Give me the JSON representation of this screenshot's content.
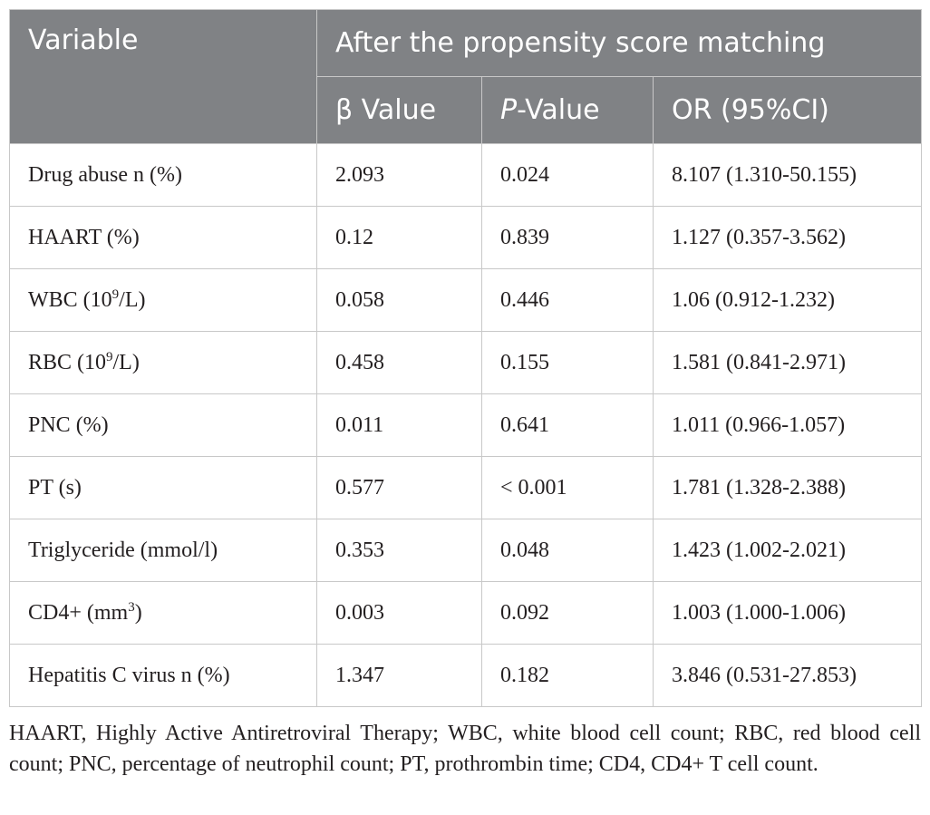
{
  "table": {
    "header": {
      "variable": "Variable",
      "group": "After the propensity score matching",
      "beta_label": "β Value",
      "p_italic": "P",
      "p_rest": "-Value",
      "or_label": "OR (95%CI)"
    },
    "rows": [
      {
        "var": "Drug abuse n (%)",
        "beta": "2.093",
        "p": "0.024",
        "or": "8.107 (1.310-50.155)"
      },
      {
        "var": "HAART (%)",
        "beta": "0.12",
        "p": "0.839",
        "or": "1.127 (0.357-3.562)"
      },
      {
        "var_pre": "WBC (10",
        "var_sup": "9",
        "var_post": "/L)",
        "beta": "0.058",
        "p": "0.446",
        "or": "1.06 (0.912-1.232)"
      },
      {
        "var_pre": "RBC (10",
        "var_sup": "9",
        "var_post": "/L)",
        "beta": "0.458",
        "p": "0.155",
        "or": "1.581 (0.841-2.971)"
      },
      {
        "var": "PNC (%)",
        "beta": "0.011",
        "p": "0.641",
        "or": "1.011 (0.966-1.057)"
      },
      {
        "var": "PT (s)",
        "beta": "0.577",
        "p": "< 0.001",
        "or": "1.781 (1.328-2.388)"
      },
      {
        "var": "Triglyceride (mmol/l)",
        "beta": "0.353",
        "p": "0.048",
        "or": "1.423 (1.002-2.021)"
      },
      {
        "var_pre": "CD4+ (mm",
        "var_sup": "3",
        "var_post": ")",
        "beta": "0.003",
        "p": "0.092",
        "or": "1.003 (1.000-1.006)"
      },
      {
        "var": "Hepatitis C virus n (%)",
        "beta": "1.347",
        "p": "0.182",
        "or": "3.846 (0.531-27.853)"
      }
    ]
  },
  "footnote": "HAART, Highly Active Antiretroviral Therapy; WBC, white blood cell count; RBC, red blood cell count; PNC, percentage of neutrophil count; PT, prothrombin time; CD4, CD4+ T cell count."
}
